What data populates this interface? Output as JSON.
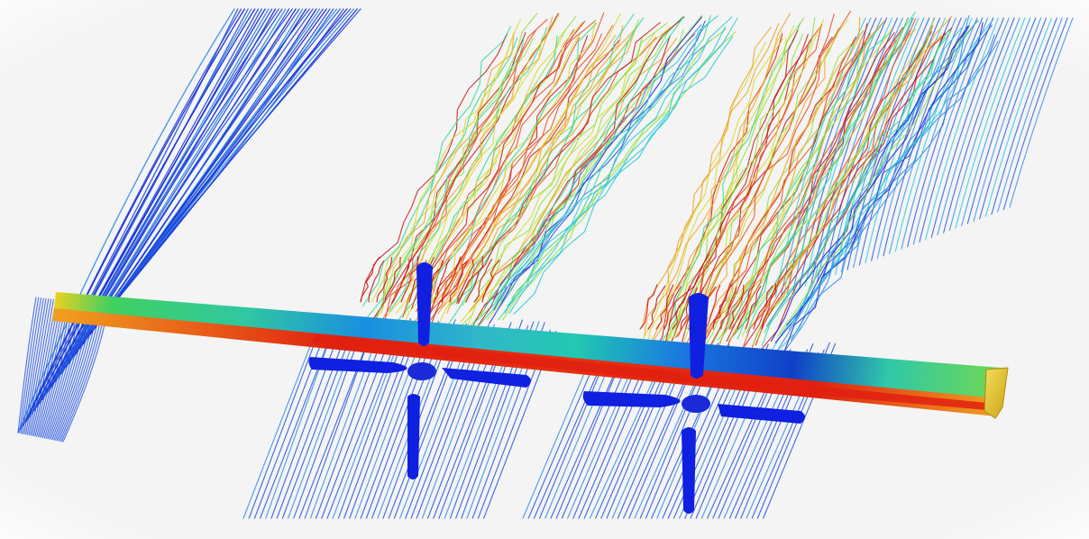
{
  "scene": {
    "background_color": "#f4f4f4",
    "frame_color": "#ffffff",
    "propeller_color": "#1020e0",
    "colormap": [
      "#1a1ad0",
      "#1f4fe0",
      "#2a8ae8",
      "#22c8d8",
      "#30d890",
      "#8ee03a",
      "#d8d82a",
      "#f0a020",
      "#e84818",
      "#c81010"
    ],
    "wing_surface_colors": [
      "#20c8a0",
      "#40d060",
      "#1a8ee0",
      "#f0c020",
      "#e02010"
    ],
    "propellers": [
      {
        "name": "inboard-propeller"
      },
      {
        "name": "outboard-propeller"
      }
    ],
    "streamline_groups": [
      {
        "name": "wingtip-streamlines",
        "color_scheme": "blue"
      },
      {
        "name": "inboard-propeller-wake-streamlines",
        "color_scheme": "blue-to-red"
      },
      {
        "name": "outboard-propeller-wake-streamlines",
        "color_scheme": "blue-to-red"
      },
      {
        "name": "far-field-streamlines",
        "color_scheme": "blue"
      }
    ]
  }
}
